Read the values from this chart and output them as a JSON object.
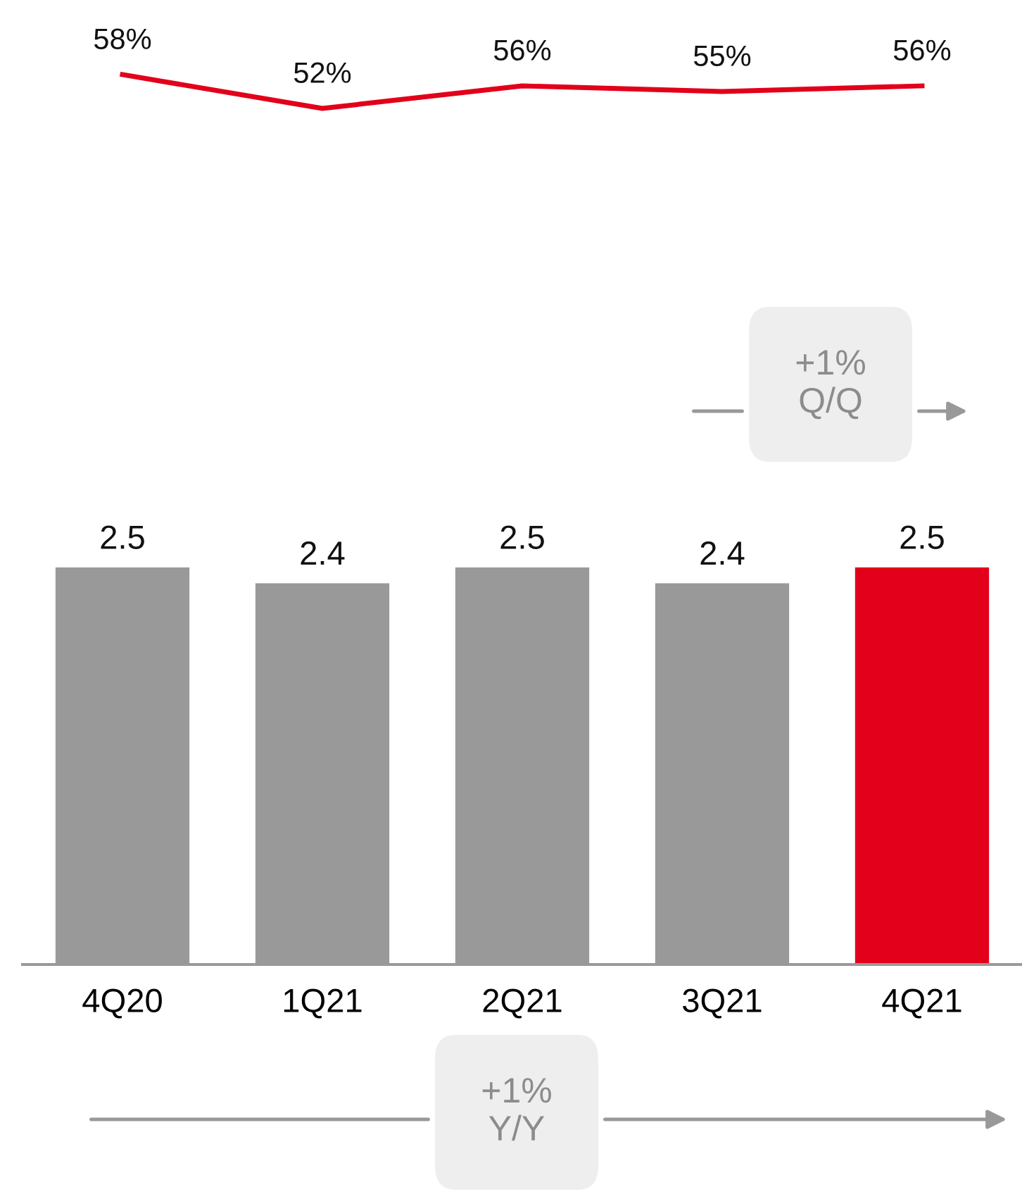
{
  "chart_data": [
    {
      "type": "line",
      "categories": [
        null,
        null,
        null,
        null,
        null
      ],
      "series": [
        {
          "color": "#e2001a",
          "values": [
            58,
            52,
            56,
            55,
            56
          ],
          "value_labels": [
            "58%",
            "52%",
            "56%",
            "55%",
            "56%"
          ]
        }
      ],
      "tick_labels": false,
      "marker": "none"
    },
    {
      "type": "bar",
      "categories": [
        "4Q20",
        "1Q21",
        "2Q21",
        "3Q21",
        "4Q21"
      ],
      "series": [
        {
          "colors": [
            "#999999",
            "#999999",
            "#999999",
            "#999999",
            "#e2001a"
          ],
          "values": [
            2.5,
            2.4,
            2.5,
            2.4,
            2.5
          ],
          "value_labels": [
            "2.5",
            "2.4",
            "2.5",
            "2.4",
            "2.5"
          ]
        }
      ],
      "tick_labels": "x",
      "annotations": [
        "+1% Q/Q",
        "+1% Y/Y"
      ]
    }
  ]
}
